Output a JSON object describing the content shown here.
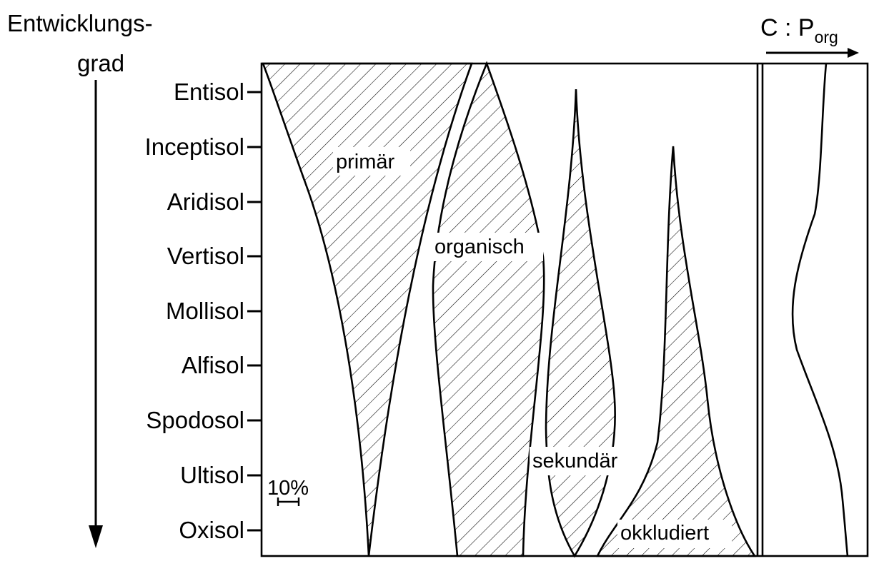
{
  "y_axis": {
    "title_line1": "Entwicklungs-",
    "title_line2": "grad",
    "soils": [
      "Entisol",
      "Inceptisol",
      "Aridisol",
      "Vertisol",
      "Mollisol",
      "Alfisol",
      "Spodosol",
      "Ultisol",
      "Oxisol"
    ]
  },
  "bands": {
    "primary": "primär",
    "organic": "organisch",
    "secondary": "sekundär",
    "occluded": "okkludiert"
  },
  "scale_label": "10%",
  "ratio_panel": {
    "label_main": "C : P",
    "label_sub": "org"
  },
  "colors": {
    "ink": "#000000",
    "background": "#ffffff"
  }
}
